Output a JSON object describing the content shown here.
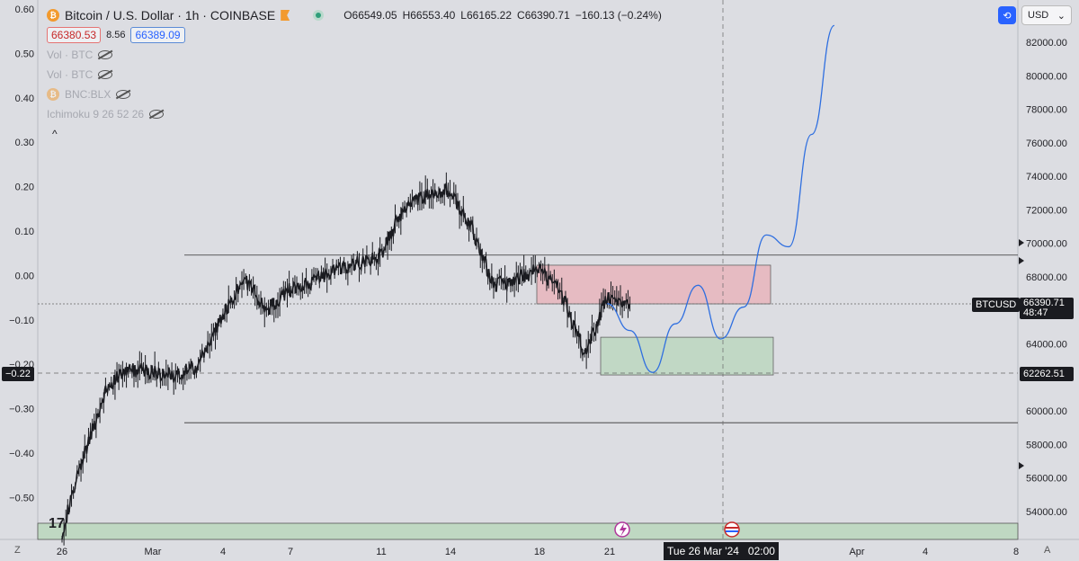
{
  "header": {
    "symbol_title": "Bitcoin / U.S. Dollar · 1h · COINBASE",
    "ohlc": {
      "open": "O66549.05",
      "high": "H66553.40",
      "low": "L66165.22",
      "close": "C66390.71",
      "change": "−160.13 (−0.24%)"
    },
    "bid": "66380.53",
    "spread": "8.56",
    "ask": "66389.09",
    "indicators": [
      "Vol · BTC",
      "Vol · BTC",
      "BNC:BLX",
      "Ichimoku 9 26 52 26"
    ],
    "coin_glyph": "₿",
    "collapse_glyph": "^"
  },
  "top_right": {
    "currency": "USD",
    "currency_caret": "⌄",
    "compare_glyph": "⟲"
  },
  "footer": {
    "z_label": "Z",
    "a_label": "A",
    "crosshair_date": "Tue 26 Mar '24",
    "crosshair_time": "02:00",
    "logo_text": "17"
  },
  "tags": {
    "left_value": "−0.22",
    "symbol_tag": "BTCUSD",
    "last_price": "66390.71",
    "countdown": "48:47",
    "crosshair_price": "62262.51"
  },
  "colors": {
    "background": "#dcdde2",
    "candle": "#1a1b20",
    "projection": "#2f6fe0",
    "supply_zone": "#e8b8bf",
    "demand_zone": "#bfd8c2",
    "accent": "#2962ff"
  },
  "chart_data": {
    "type": "line",
    "title": "Bitcoin / U.S. Dollar · 1h · COINBASE",
    "right_axis": {
      "ticks": [
        "82000.00",
        "80000.00",
        "78000.00",
        "76000.00",
        "74000.00",
        "72000.00",
        "70000.00",
        "68000.00",
        "66000.00",
        "64000.00",
        "62000.00",
        "60000.00",
        "58000.00",
        "56000.00",
        "54000.00"
      ],
      "range": [
        52600,
        83500
      ]
    },
    "left_axis": {
      "ticks": [
        "0.60",
        "0.50",
        "0.40",
        "0.30",
        "0.20",
        "0.10",
        "0.00",
        "−0.10",
        "−0.20",
        "−0.30",
        "−0.40",
        "−0.50"
      ]
    },
    "x_ticks": [
      "26",
      "Mar",
      "4",
      "7",
      "11",
      "14",
      "18",
      "21",
      "Apr",
      "4",
      "8"
    ],
    "price_series": {
      "name": "BTCUSD",
      "x": [
        "Feb 26",
        "Feb 27",
        "Feb 28",
        "Feb 29",
        "Mar 1",
        "Mar 2",
        "Mar 3",
        "Mar 4",
        "Mar 5",
        "Mar 6",
        "Mar 7",
        "Mar 8",
        "Mar 9",
        "Mar 10",
        "Mar 11",
        "Mar 12",
        "Mar 13",
        "Mar 14",
        "Mar 15",
        "Mar 16",
        "Mar 17",
        "Mar 18",
        "Mar 19",
        "Mar 20",
        "Mar 21",
        "Mar 22"
      ],
      "values": [
        52800,
        57500,
        61500,
        62500,
        62300,
        62100,
        62700,
        65500,
        68000,
        66000,
        67200,
        67700,
        68400,
        68800,
        69200,
        72000,
        72800,
        73200,
        71000,
        67500,
        67800,
        68500,
        67000,
        63500,
        66700,
        66390
      ]
    },
    "projection": {
      "name": "Projection",
      "x": [
        "Mar 21",
        "Mar 22",
        "Mar 23",
        "Mar 24",
        "Mar 25",
        "Mar 26",
        "Mar 27",
        "Mar 28",
        "Mar 29",
        "Mar 30",
        "Mar 31"
      ],
      "values": [
        66400,
        64800,
        62300,
        65200,
        67500,
        64300,
        66200,
        70500,
        69800,
        76500,
        83000
      ]
    },
    "levels": [
      69300,
      59300,
      66390.71,
      62262.51
    ],
    "zones": [
      {
        "label": "supply",
        "from": 66390,
        "to": 68700
      },
      {
        "label": "demand",
        "from": 62150,
        "to": 64400
      }
    ],
    "grid": false
  }
}
